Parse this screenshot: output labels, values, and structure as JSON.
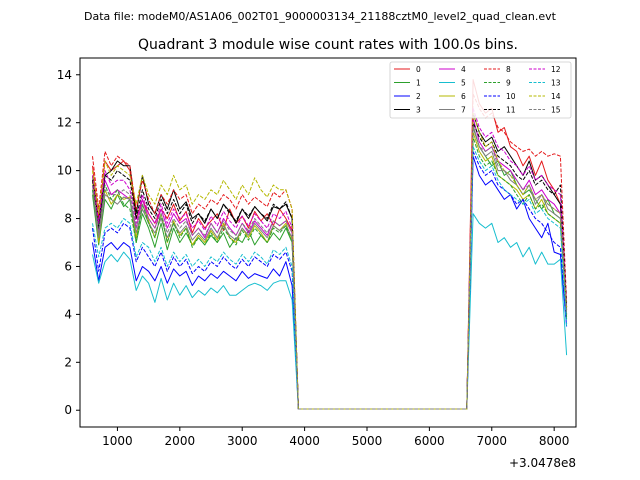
{
  "header": {
    "data_file": "Data file: modeM0/AS1A06_002T01_9000003134_21188cztM0_level2_quad_clean.evt"
  },
  "chart_data": {
    "type": "line",
    "title": "Quadrant 3 module wise count rates with 100.0s bins.",
    "xlabel": "",
    "ylabel": "",
    "x_offset_label": "+3.0478e8",
    "xlim": [
      400,
      8350
    ],
    "ylim": [
      -0.7,
      14.7
    ],
    "x_ticks": [
      1000,
      2000,
      3000,
      4000,
      5000,
      6000,
      7000,
      8000
    ],
    "y_ticks": [
      0,
      2,
      4,
      6,
      8,
      10,
      12,
      14
    ],
    "legend_position": "top-right",
    "x": [
      600,
      700,
      800,
      900,
      1000,
      1100,
      1200,
      1300,
      1400,
      1500,
      1600,
      1700,
      1800,
      1900,
      2000,
      2100,
      2200,
      2300,
      2400,
      2500,
      2600,
      2700,
      2800,
      2900,
      3000,
      3100,
      3200,
      3300,
      3400,
      3500,
      3600,
      3700,
      3800,
      3900,
      4000,
      5000,
      6000,
      6600,
      6700,
      6800,
      6900,
      7000,
      7100,
      7200,
      7300,
      7400,
      7500,
      7600,
      7700,
      7800,
      7900,
      8000,
      8100,
      8200
    ],
    "series": [
      {
        "name": "0",
        "color": "#e41a1c",
        "dash": "solid",
        "values": [
          10.2,
          8.0,
          10.4,
          10.0,
          10.2,
          10.4,
          10.0,
          8.0,
          8.8,
          8.2,
          7.8,
          8.4,
          8.0,
          8.6,
          7.9,
          8.3,
          7.4,
          8.0,
          7.6,
          7.9,
          8.2,
          7.5,
          8.4,
          7.8,
          8.1,
          7.6,
          8.3,
          7.9,
          8.2,
          7.7,
          8.4,
          8.0,
          7.5,
          0.05,
          0.05,
          0.05,
          0.05,
          0.05,
          13.8,
          12.8,
          12.4,
          12.6,
          11.6,
          11.8,
          11.0,
          10.8,
          10.2,
          10.6,
          9.8,
          10.4,
          9.6,
          9.2,
          8.6,
          4.2
        ]
      },
      {
        "name": "1",
        "color": "#2ca02c",
        "dash": "solid",
        "values": [
          9.0,
          6.9,
          8.8,
          8.4,
          9.0,
          8.5,
          8.8,
          7.0,
          8.2,
          7.6,
          6.8,
          7.8,
          6.7,
          7.6,
          7.0,
          7.4,
          6.9,
          7.2,
          6.9,
          7.3,
          7.0,
          7.4,
          6.8,
          7.2,
          7.0,
          7.5,
          6.9,
          7.3,
          7.0,
          7.4,
          7.1,
          7.6,
          7.0,
          0.05,
          0.05,
          0.05,
          0.05,
          0.05,
          11.8,
          11.0,
          10.6,
          10.2,
          10.4,
          9.8,
          10.0,
          9.4,
          9.0,
          9.2,
          8.8,
          8.4,
          8.8,
          8.2,
          8.0,
          3.8
        ]
      },
      {
        "name": "2",
        "color": "#0000ff",
        "dash": "solid",
        "values": [
          7.0,
          5.4,
          6.8,
          7.0,
          6.7,
          7.0,
          6.8,
          5.4,
          6.0,
          5.8,
          5.4,
          6.0,
          5.3,
          5.9,
          5.6,
          5.8,
          5.2,
          5.6,
          5.4,
          5.7,
          5.5,
          5.8,
          5.6,
          5.4,
          5.8,
          5.5,
          5.7,
          5.6,
          5.5,
          5.9,
          5.6,
          6.2,
          5.2,
          0.05,
          0.05,
          0.05,
          0.05,
          0.05,
          10.6,
          9.8,
          9.4,
          9.6,
          9.2,
          8.8,
          9.0,
          8.4,
          8.8,
          8.0,
          7.6,
          7.2,
          7.8,
          6.6,
          6.5,
          3.5
        ]
      },
      {
        "name": "3",
        "color": "#000000",
        "dash": "solid",
        "values": [
          9.8,
          7.8,
          9.8,
          10.0,
          10.4,
          10.2,
          10.2,
          8.2,
          9.8,
          8.6,
          8.2,
          9.0,
          8.4,
          9.2,
          8.4,
          8.7,
          8.0,
          8.2,
          7.8,
          8.4,
          8.0,
          8.6,
          8.3,
          7.8,
          8.4,
          8.0,
          8.5,
          8.2,
          7.9,
          8.5,
          8.4,
          8.6,
          8.0,
          0.05,
          0.05,
          0.05,
          0.05,
          0.05,
          12.4,
          11.6,
          11.2,
          11.4,
          10.8,
          11.0,
          10.6,
          10.2,
          9.8,
          10.4,
          9.6,
          9.8,
          9.4,
          9.0,
          8.6,
          4.3
        ]
      },
      {
        "name": "4",
        "color": "#cc00cc",
        "dash": "solid",
        "values": [
          9.4,
          7.4,
          9.6,
          9.0,
          9.2,
          9.0,
          8.8,
          7.6,
          8.8,
          8.0,
          7.6,
          8.4,
          7.6,
          8.2,
          7.8,
          8.0,
          7.3,
          7.6,
          7.2,
          7.8,
          7.4,
          8.0,
          7.6,
          7.3,
          7.8,
          7.4,
          7.9,
          7.6,
          7.3,
          7.9,
          7.7,
          7.9,
          7.4,
          0.05,
          0.05,
          0.05,
          0.05,
          0.05,
          12.2,
          11.2,
          10.8,
          11.0,
          10.4,
          10.2,
          10.0,
          9.6,
          9.2,
          9.6,
          9.0,
          9.2,
          8.8,
          8.6,
          8.2,
          4.0
        ]
      },
      {
        "name": "5",
        "color": "#17becf",
        "dash": "solid",
        "values": [
          6.5,
          5.3,
          6.2,
          6.5,
          6.2,
          6.6,
          6.3,
          5.0,
          5.6,
          5.3,
          4.5,
          5.5,
          4.6,
          5.3,
          4.8,
          5.2,
          4.7,
          5.0,
          4.8,
          5.1,
          4.9,
          5.2,
          4.8,
          4.8,
          5.0,
          5.2,
          5.3,
          5.2,
          5.0,
          5.3,
          5.4,
          5.4,
          4.6,
          0.05,
          0.05,
          0.05,
          0.05,
          0.05,
          8.2,
          7.8,
          7.6,
          7.8,
          7.0,
          7.2,
          6.8,
          7.0,
          6.4,
          6.8,
          6.1,
          6.6,
          6.1,
          6.1,
          6.3,
          2.3
        ]
      },
      {
        "name": "6",
        "color": "#b5b800",
        "dash": "solid",
        "values": [
          9.6,
          7.0,
          9.2,
          8.6,
          9.0,
          8.8,
          8.9,
          7.2,
          8.6,
          7.9,
          7.2,
          8.2,
          7.0,
          7.9,
          7.3,
          7.6,
          6.9,
          7.3,
          7.0,
          7.5,
          7.1,
          7.8,
          7.2,
          7.0,
          7.6,
          7.2,
          7.7,
          7.4,
          7.0,
          7.7,
          7.5,
          7.8,
          7.1,
          0.05,
          0.05,
          0.05,
          0.05,
          0.05,
          11.6,
          10.8,
          10.4,
          10.6,
          9.8,
          9.6,
          9.4,
          9.2,
          8.8,
          9.0,
          8.4,
          8.8,
          8.2,
          8.0,
          7.8,
          4.0
        ]
      },
      {
        "name": "7",
        "color": "#7f7f7f",
        "dash": "solid",
        "values": [
          9.2,
          7.2,
          9.0,
          8.8,
          8.6,
          8.9,
          8.8,
          7.4,
          8.4,
          7.8,
          7.4,
          8.0,
          7.2,
          7.8,
          7.4,
          7.7,
          7.1,
          7.4,
          7.1,
          7.6,
          7.2,
          7.7,
          7.3,
          7.1,
          7.6,
          7.3,
          7.8,
          7.5,
          7.2,
          7.7,
          7.5,
          7.7,
          7.2,
          0.05,
          0.05,
          0.05,
          0.05,
          0.05,
          11.9,
          11.0,
          10.6,
          10.8,
          10.0,
          10.0,
          9.6,
          9.4,
          9.0,
          9.4,
          8.6,
          9.0,
          8.4,
          8.2,
          8.0,
          4.0
        ]
      },
      {
        "name": "8",
        "color": "#e41a1c",
        "dash": "dashed",
        "values": [
          10.6,
          8.4,
          10.8,
          10.2,
          10.6,
          10.4,
          10.2,
          8.4,
          9.6,
          8.8,
          8.2,
          9.0,
          8.6,
          9.2,
          8.8,
          9.0,
          8.2,
          8.6,
          8.4,
          8.8,
          8.6,
          9.0,
          8.8,
          8.4,
          9.0,
          8.6,
          8.9,
          8.7,
          8.5,
          9.1,
          8.9,
          9.2,
          8.4,
          0.05,
          0.05,
          0.05,
          0.05,
          0.05,
          13.2,
          12.6,
          12.2,
          12.4,
          11.8,
          11.6,
          11.2,
          11.0,
          10.8,
          10.9,
          10.6,
          10.8,
          10.6,
          10.7,
          10.6,
          4.5
        ]
      },
      {
        "name": "9",
        "color": "#2ca02c",
        "dash": "dashed",
        "values": [
          9.2,
          7.6,
          9.4,
          8.8,
          9.2,
          8.6,
          8.4,
          7.0,
          8.6,
          7.8,
          7.2,
          8.2,
          7.0,
          7.8,
          7.2,
          7.6,
          6.8,
          7.2,
          6.9,
          7.4,
          7.0,
          7.6,
          7.2,
          6.9,
          7.5,
          7.1,
          7.6,
          7.3,
          7.0,
          7.6,
          7.4,
          7.7,
          7.0,
          0.05,
          0.05,
          0.05,
          0.05,
          0.05,
          11.4,
          10.6,
          10.2,
          10.4,
          9.8,
          9.6,
          9.4,
          9.0,
          8.6,
          9.0,
          8.4,
          8.6,
          8.2,
          8.0,
          7.8,
          3.9
        ]
      },
      {
        "name": "10",
        "color": "#0000ff",
        "dash": "dashed",
        "values": [
          7.6,
          5.8,
          7.4,
          7.6,
          7.4,
          7.8,
          7.6,
          6.2,
          6.8,
          6.4,
          6.0,
          6.6,
          5.8,
          6.4,
          6.0,
          6.3,
          5.7,
          6.0,
          5.8,
          6.2,
          6.0,
          6.4,
          6.1,
          5.9,
          6.3,
          6.0,
          6.4,
          6.2,
          6.0,
          6.5,
          6.3,
          6.6,
          5.8,
          0.05,
          0.05,
          0.05,
          0.05,
          0.05,
          10.8,
          10.2,
          9.8,
          10.0,
          9.4,
          9.2,
          9.0,
          8.6,
          8.8,
          8.4,
          8.0,
          7.8,
          7.4,
          7.0,
          6.8,
          3.6
        ]
      },
      {
        "name": "11",
        "color": "#000000",
        "dash": "dashed",
        "values": [
          9.6,
          7.6,
          9.8,
          9.6,
          10.0,
          9.8,
          9.6,
          8.0,
          9.2,
          8.4,
          8.0,
          8.8,
          8.2,
          8.8,
          8.2,
          8.6,
          7.8,
          8.2,
          7.9,
          8.4,
          8.0,
          8.6,
          8.2,
          7.9,
          8.4,
          8.1,
          8.5,
          8.2,
          8.0,
          8.6,
          8.4,
          8.7,
          8.0,
          0.05,
          0.05,
          0.05,
          0.05,
          0.05,
          12.0,
          11.4,
          11.0,
          11.2,
          10.6,
          10.4,
          10.2,
          9.8,
          9.6,
          10.0,
          9.4,
          9.6,
          9.2,
          9.0,
          9.4,
          4.3
        ]
      },
      {
        "name": "12",
        "color": "#cc00cc",
        "dash": "dashed",
        "values": [
          9.8,
          7.8,
          10.0,
          9.4,
          9.6,
          9.6,
          9.2,
          7.8,
          9.0,
          8.2,
          7.8,
          8.6,
          7.8,
          8.4,
          8.0,
          8.2,
          7.6,
          7.9,
          7.5,
          8.1,
          7.7,
          8.3,
          7.9,
          7.6,
          8.1,
          7.7,
          8.2,
          7.9,
          7.6,
          8.2,
          8.0,
          8.3,
          7.6,
          0.05,
          0.05,
          0.05,
          0.05,
          0.05,
          12.6,
          11.8,
          11.4,
          11.6,
          11.0,
          10.8,
          10.4,
          10.2,
          9.8,
          10.2,
          9.6,
          9.8,
          9.4,
          9.2,
          9.0,
          4.2
        ]
      },
      {
        "name": "13",
        "color": "#17becf",
        "dash": "dashed",
        "values": [
          7.8,
          6.4,
          7.6,
          7.8,
          7.6,
          8.0,
          7.8,
          6.4,
          7.0,
          6.8,
          6.2,
          6.8,
          6.0,
          6.6,
          6.2,
          6.5,
          6.0,
          6.3,
          6.0,
          6.4,
          6.2,
          6.6,
          6.3,
          6.1,
          6.5,
          6.2,
          6.6,
          6.4,
          6.1,
          6.7,
          6.5,
          6.8,
          6.0,
          0.05,
          0.05,
          0.05,
          0.05,
          0.05,
          11.0,
          10.4,
          10.0,
          10.2,
          9.6,
          9.2,
          9.0,
          8.8,
          8.6,
          8.8,
          8.2,
          8.4,
          8.0,
          7.8,
          7.6,
          3.5
        ]
      },
      {
        "name": "14",
        "color": "#b5b800",
        "dash": "dashed",
        "values": [
          10.0,
          8.2,
          10.4,
          9.8,
          10.2,
          10.0,
          9.8,
          8.6,
          9.8,
          9.0,
          8.6,
          9.4,
          9.0,
          9.8,
          9.2,
          9.4,
          8.6,
          9.0,
          8.8,
          9.2,
          9.0,
          9.6,
          9.2,
          8.8,
          9.4,
          9.0,
          9.7,
          9.2,
          8.9,
          9.4,
          9.2,
          9.2,
          8.4,
          0.05,
          0.05,
          0.05,
          0.05,
          0.05,
          12.4,
          11.6,
          11.0,
          11.2,
          10.4,
          10.0,
          9.8,
          9.4,
          9.0,
          9.4,
          8.8,
          9.0,
          8.6,
          8.4,
          8.2,
          4.2
        ]
      },
      {
        "name": "15",
        "color": "#7f7f7f",
        "dash": "dashed",
        "values": [
          9.4,
          7.4,
          9.2,
          9.0,
          9.0,
          9.2,
          9.0,
          7.6,
          8.6,
          8.0,
          7.6,
          8.2,
          7.4,
          8.0,
          7.6,
          7.9,
          7.3,
          7.6,
          7.3,
          7.8,
          7.4,
          7.9,
          7.5,
          7.3,
          7.8,
          7.5,
          8.0,
          7.7,
          7.4,
          7.9,
          7.7,
          7.9,
          7.4,
          0.05,
          0.05,
          0.05,
          0.05,
          0.05,
          11.8,
          11.0,
          10.8,
          11.0,
          10.2,
          10.0,
          9.8,
          9.6,
          9.2,
          9.4,
          8.8,
          9.0,
          8.6,
          8.4,
          8.2,
          4.1
        ]
      }
    ]
  }
}
